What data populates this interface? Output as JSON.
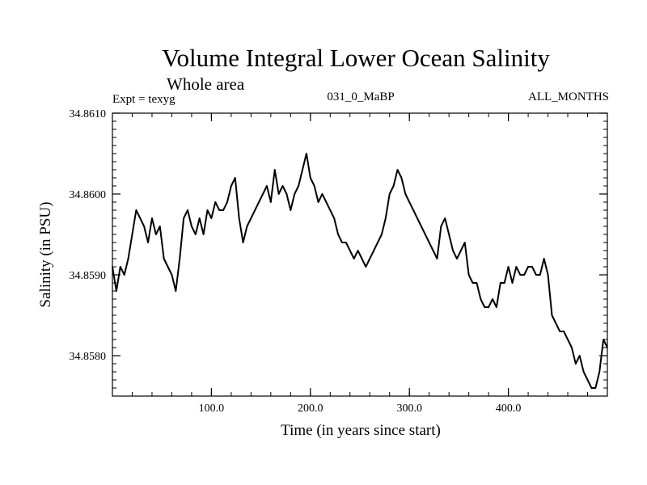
{
  "chart_data": {
    "type": "line",
    "title": "Volume Integral Lower Ocean Salinity",
    "subtitle": "Whole area",
    "header_left": "Expt = texyg",
    "header_center": "031_0_MaBP",
    "header_right": "ALL_MONTHS",
    "xlabel": "Time (in years since start)",
    "ylabel": "Salinity (in PSU)",
    "xlim": [
      0,
      500
    ],
    "ylim": [
      34.8575,
      34.861
    ],
    "x_ticks": [
      100,
      200,
      300,
      400
    ],
    "x_tick_labels": [
      "100.0",
      "200.0",
      "300.0",
      "400.0"
    ],
    "y_ticks": [
      34.858,
      34.859,
      34.86,
      34.861
    ],
    "y_tick_labels": [
      "34.8580",
      "34.8590",
      "34.8600",
      "34.8610"
    ],
    "grid": false,
    "series": [
      {
        "color": "#000000",
        "x": [
          0,
          4,
          8,
          12,
          16,
          20,
          24,
          28,
          32,
          36,
          40,
          44,
          48,
          52,
          56,
          60,
          64,
          68,
          72,
          76,
          80,
          84,
          88,
          92,
          96,
          100,
          104,
          108,
          112,
          116,
          120,
          124,
          128,
          132,
          136,
          140,
          144,
          148,
          152,
          156,
          160,
          164,
          168,
          172,
          176,
          180,
          184,
          188,
          192,
          196,
          200,
          204,
          208,
          212,
          216,
          220,
          224,
          228,
          232,
          236,
          240,
          244,
          248,
          252,
          256,
          260,
          264,
          268,
          272,
          276,
          280,
          284,
          288,
          292,
          296,
          300,
          304,
          308,
          312,
          316,
          320,
          324,
          328,
          332,
          336,
          340,
          344,
          348,
          352,
          356,
          360,
          364,
          368,
          372,
          376,
          380,
          384,
          388,
          392,
          396,
          400,
          404,
          408,
          412,
          416,
          420,
          424,
          428,
          432,
          436,
          440,
          444,
          448,
          452,
          456,
          460,
          464,
          468,
          472,
          476,
          480,
          484,
          488,
          492,
          496,
          500
        ],
        "y": [
          34.8591,
          34.8588,
          34.8591,
          34.859,
          34.8592,
          34.8595,
          34.8598,
          34.8597,
          34.8596,
          34.8594,
          34.8597,
          34.8595,
          34.8596,
          34.8592,
          34.8591,
          34.859,
          34.8588,
          34.8592,
          34.8597,
          34.8598,
          34.8596,
          34.8595,
          34.8597,
          34.8595,
          34.8598,
          34.8597,
          34.8599,
          34.8598,
          34.8598,
          34.8599,
          34.8601,
          34.8602,
          34.8597,
          34.8594,
          34.8596,
          34.8597,
          34.8598,
          34.8599,
          34.86,
          34.8601,
          34.8599,
          34.8603,
          34.86,
          34.8601,
          34.86,
          34.8598,
          34.86,
          34.8601,
          34.8603,
          34.8605,
          34.8602,
          34.8601,
          34.8599,
          34.86,
          34.8599,
          34.8598,
          34.8597,
          34.8595,
          34.8594,
          34.8594,
          34.8593,
          34.8592,
          34.8593,
          34.8592,
          34.8591,
          34.8592,
          34.8593,
          34.8594,
          34.8595,
          34.8597,
          34.86,
          34.8601,
          34.8603,
          34.8602,
          34.86,
          34.8599,
          34.8598,
          34.8597,
          34.8596,
          34.8595,
          34.8594,
          34.8593,
          34.8592,
          34.8596,
          34.8597,
          34.8595,
          34.8593,
          34.8592,
          34.8593,
          34.8594,
          34.859,
          34.8589,
          34.8589,
          34.8587,
          34.8586,
          34.8586,
          34.8587,
          34.8586,
          34.8589,
          34.8589,
          34.8591,
          34.8589,
          34.8591,
          34.859,
          34.859,
          34.8591,
          34.8591,
          34.859,
          34.859,
          34.8592,
          34.859,
          34.8585,
          34.8584,
          34.8583,
          34.8583,
          34.8582,
          34.8581,
          34.8579,
          34.858,
          34.8578,
          34.8577,
          34.8576,
          34.8576,
          34.8578,
          34.8582,
          34.8581
        ]
      }
    ]
  }
}
